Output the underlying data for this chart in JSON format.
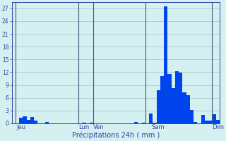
{
  "title": "",
  "xlabel": "Précipitations 24h ( mm )",
  "ylabel": "",
  "ylim": [
    0,
    28.5
  ],
  "yticks": [
    0,
    3,
    6,
    9,
    12,
    15,
    18,
    21,
    24,
    27
  ],
  "background_color": "#d4f0f0",
  "bar_color": "#0044ee",
  "grid_color": "#aacccc",
  "axis_color": "#3344aa",
  "tick_label_color": "#3344aa",
  "xlabel_color": "#3344aa",
  "num_bars": 56,
  "day_labels": [
    {
      "label": "Jeu",
      "bar_index": 2
    },
    {
      "label": "Lun",
      "bar_index": 19
    },
    {
      "label": "Ven",
      "bar_index": 23
    },
    {
      "label": "Sam",
      "bar_index": 39
    },
    {
      "label": "Dim",
      "bar_index": 55
    }
  ],
  "day_vlines": [
    0,
    17,
    21,
    35,
    53
  ],
  "bar_values": [
    0.0,
    0.0,
    1.3,
    1.6,
    0.9,
    1.5,
    0.7,
    0.0,
    0.0,
    0.4,
    0.0,
    0.0,
    0.0,
    0.0,
    0.0,
    0.0,
    0.0,
    0.0,
    0.0,
    0.15,
    0.0,
    0.1,
    0.0,
    0.05,
    0.0,
    0.0,
    0.0,
    0.0,
    0.0,
    0.0,
    0.0,
    0.0,
    0.0,
    0.3,
    0.0,
    0.1,
    0.0,
    2.3,
    0.2,
    7.8,
    11.0,
    27.5,
    11.5,
    8.2,
    12.2,
    11.9,
    7.2,
    6.6,
    3.2,
    0.3,
    0.0,
    2.0,
    0.6,
    0.6,
    2.2,
    0.9
  ]
}
